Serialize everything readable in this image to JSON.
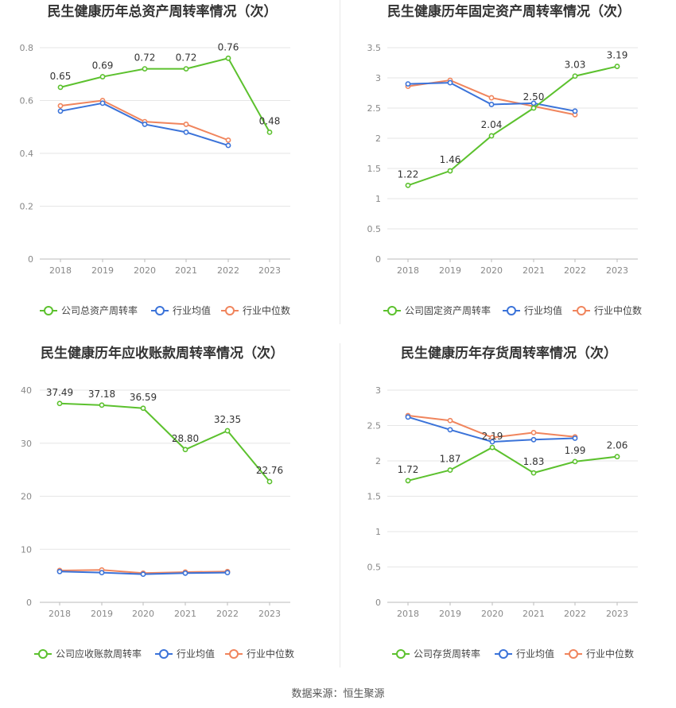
{
  "source_text": "数据来源：恒生聚源",
  "colors": {
    "company": "#5cc12e",
    "avg": "#3b73d9",
    "median": "#f0855d",
    "grid": "#e6e6e6",
    "axis": "#888888",
    "title": "#333333"
  },
  "chart_data": [
    {
      "type": "line",
      "title": "民生健康历年总资产周转率情况（次）",
      "categories": [
        "2018",
        "2019",
        "2020",
        "2021",
        "2022",
        "2023"
      ],
      "ylim": [
        0,
        0.8
      ],
      "yticks": [
        "0",
        "0.2",
        "0.4",
        "0.6",
        "0.8"
      ],
      "series": [
        {
          "name": "公司总资产周转率",
          "values": [
            0.65,
            0.69,
            0.72,
            0.72,
            0.76,
            0.48
          ],
          "labels": [
            "0.65",
            "0.69",
            "0.72",
            "0.72",
            "0.76",
            "0.48"
          ]
        },
        {
          "name": "行业均值",
          "values": [
            0.56,
            0.59,
            0.51,
            0.48,
            0.43,
            null
          ]
        },
        {
          "name": "行业中位数",
          "values": [
            0.58,
            0.6,
            0.52,
            0.51,
            0.45,
            null
          ]
        }
      ]
    },
    {
      "type": "line",
      "title": "民生健康历年固定资产周转率情况（次）",
      "categories": [
        "2018",
        "2019",
        "2020",
        "2021",
        "2022",
        "2023"
      ],
      "ylim": [
        0,
        3.5
      ],
      "yticks": [
        "0",
        "0.5",
        "1",
        "1.5",
        "2",
        "2.5",
        "3",
        "3.5"
      ],
      "series": [
        {
          "name": "公司固定资产周转率",
          "values": [
            1.22,
            1.46,
            2.04,
            2.5,
            3.03,
            3.19
          ],
          "labels": [
            "1.22",
            "1.46",
            "2.04",
            "2.50",
            "3.03",
            "3.19"
          ]
        },
        {
          "name": "行业均值",
          "values": [
            2.9,
            2.92,
            2.56,
            2.58,
            2.45,
            null
          ]
        },
        {
          "name": "行业中位数",
          "values": [
            2.86,
            2.96,
            2.67,
            2.53,
            2.39,
            null
          ]
        }
      ]
    },
    {
      "type": "line",
      "title": "民生健康历年应收账款周转率情况（次）",
      "categories": [
        "2018",
        "2019",
        "2020",
        "2021",
        "2022",
        "2023"
      ],
      "ylim": [
        0,
        40
      ],
      "yticks": [
        "0",
        "10",
        "20",
        "30",
        "40"
      ],
      "series": [
        {
          "name": "公司应收账款周转率",
          "values": [
            37.49,
            37.18,
            36.59,
            28.8,
            32.35,
            22.76
          ],
          "labels": [
            "37.49",
            "37.18",
            "36.59",
            "28.80",
            "32.35",
            "22.76"
          ]
        },
        {
          "name": "行业均值",
          "values": [
            5.8,
            5.6,
            5.3,
            5.5,
            5.6,
            null
          ]
        },
        {
          "name": "行业中位数",
          "values": [
            6.0,
            6.1,
            5.5,
            5.7,
            5.8,
            null
          ]
        }
      ]
    },
    {
      "type": "line",
      "title": "民生健康历年存货周转率情况（次）",
      "categories": [
        "2018",
        "2019",
        "2020",
        "2021",
        "2022",
        "2023"
      ],
      "ylim": [
        0,
        3
      ],
      "yticks": [
        "0",
        "0.5",
        "1",
        "1.5",
        "2",
        "2.5",
        "3"
      ],
      "series": [
        {
          "name": "公司存货周转率",
          "values": [
            1.72,
            1.87,
            2.19,
            1.83,
            1.99,
            2.06
          ],
          "labels": [
            "1.72",
            "1.87",
            "2.19",
            "1.83",
            "1.99",
            "2.06"
          ]
        },
        {
          "name": "行业均值",
          "values": [
            2.62,
            2.44,
            2.27,
            2.3,
            2.32,
            null
          ]
        },
        {
          "name": "行业中位数",
          "values": [
            2.64,
            2.57,
            2.33,
            2.4,
            2.34,
            null
          ]
        }
      ]
    }
  ]
}
